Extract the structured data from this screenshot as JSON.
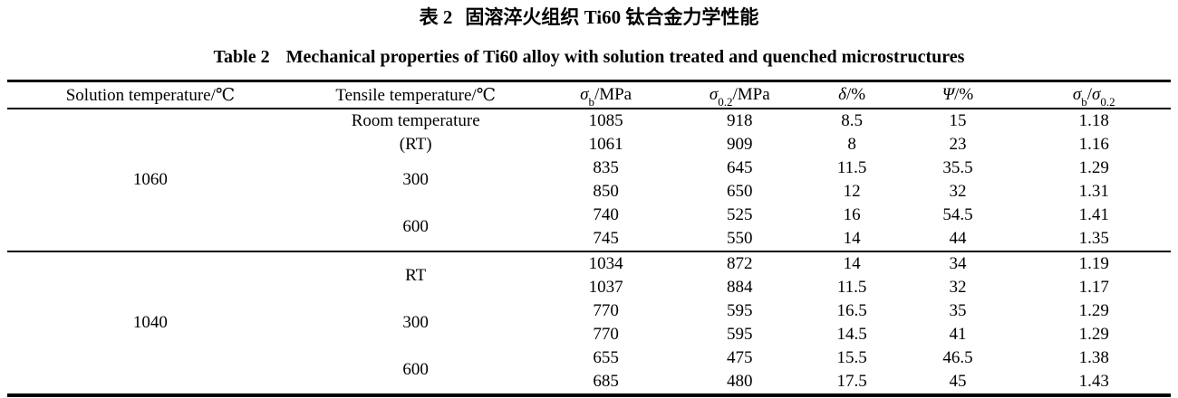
{
  "titles": {
    "zh_label": "表 2",
    "zh_text": "固溶淬火组织 Ti60 钛合金力学性能",
    "en_label": "Table 2",
    "en_text": "Mechanical properties of Ti60 alloy with solution treated and quenched microstructures"
  },
  "table": {
    "headers": {
      "solution": "Solution temperature/℃",
      "tensile": "Tensile temperature/℃",
      "sigma_b": {
        "sym": "σ",
        "sub": "b",
        "suffix": "/MPa"
      },
      "sigma_02": {
        "sym": "σ",
        "sub": "0.2",
        "suffix": "/MPa"
      },
      "delta": {
        "sym": "δ",
        "suffix": "/%"
      },
      "psi": {
        "sym": "Ψ",
        "suffix": "/%"
      },
      "ratio": {
        "sym1": "σ",
        "sub1": "b",
        "slash": "/",
        "sym2": "σ",
        "sub2": "0.2"
      }
    },
    "solution_groups": [
      "1060",
      "1040"
    ],
    "tensile_cells": [
      {
        "lines": [
          "Room temperature",
          "(RT)"
        ]
      },
      {
        "lines": [
          "300"
        ]
      },
      {
        "lines": [
          "600"
        ]
      },
      {
        "lines": [
          "RT"
        ]
      },
      {
        "lines": [
          "300"
        ]
      },
      {
        "lines": [
          "600"
        ]
      }
    ],
    "rows": [
      [
        "1085",
        "918",
        "8.5",
        "15",
        "1.18"
      ],
      [
        "1061",
        "909",
        "8",
        "23",
        "1.16"
      ],
      [
        "835",
        "645",
        "11.5",
        "35.5",
        "1.29"
      ],
      [
        "850",
        "650",
        "12",
        "32",
        "1.31"
      ],
      [
        "740",
        "525",
        "16",
        "54.5",
        "1.41"
      ],
      [
        "745",
        "550",
        "14",
        "44",
        "1.35"
      ],
      [
        "1034",
        "872",
        "14",
        "34",
        "1.19"
      ],
      [
        "1037",
        "884",
        "11.5",
        "32",
        "1.17"
      ],
      [
        "770",
        "595",
        "16.5",
        "35",
        "1.29"
      ],
      [
        "770",
        "595",
        "14.5",
        "41",
        "1.29"
      ],
      [
        "655",
        "475",
        "15.5",
        "46.5",
        "1.38"
      ],
      [
        "685",
        "480",
        "17.5",
        "45",
        "1.43"
      ]
    ]
  },
  "chart_data": {
    "type": "table",
    "title": "Table 2 Mechanical properties of Ti60 alloy with solution treated and quenched microstructures",
    "columns": [
      "Solution temperature/℃",
      "Tensile temperature/℃",
      "σb/MPa",
      "σ0.2/MPa",
      "δ/%",
      "Ψ/%",
      "σb/σ0.2"
    ],
    "rows": [
      [
        "1060",
        "Room temperature (RT)",
        1085,
        918,
        8.5,
        15,
        1.18
      ],
      [
        "1060",
        "Room temperature (RT)",
        1061,
        909,
        8,
        23,
        1.16
      ],
      [
        "1060",
        "300",
        835,
        645,
        11.5,
        35.5,
        1.29
      ],
      [
        "1060",
        "300",
        850,
        650,
        12,
        32,
        1.31
      ],
      [
        "1060",
        "600",
        740,
        525,
        16,
        54.5,
        1.41
      ],
      [
        "1060",
        "600",
        745,
        550,
        14,
        44,
        1.35
      ],
      [
        "1040",
        "RT",
        1034,
        872,
        14,
        34,
        1.19
      ],
      [
        "1040",
        "RT",
        1037,
        884,
        11.5,
        32,
        1.17
      ],
      [
        "1040",
        "300",
        770,
        595,
        16.5,
        35,
        1.29
      ],
      [
        "1040",
        "300",
        770,
        595,
        14.5,
        41,
        1.29
      ],
      [
        "1040",
        "600",
        655,
        475,
        15.5,
        46.5,
        1.38
      ],
      [
        "1040",
        "600",
        685,
        480,
        17.5,
        45,
        1.43
      ]
    ]
  }
}
